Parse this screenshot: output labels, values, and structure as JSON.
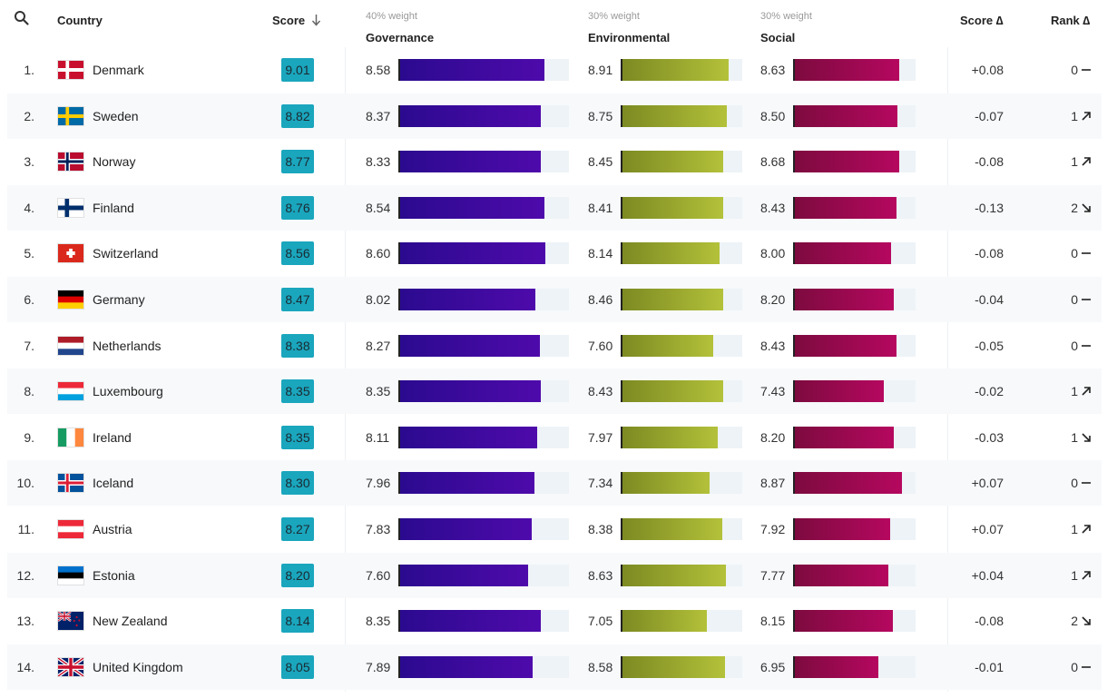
{
  "header": {
    "country": "Country",
    "score": "Score",
    "score_delta": "Score ∆",
    "rank_delta": "Rank ∆",
    "pillars": [
      {
        "name": "Governance",
        "weight": "40% weight"
      },
      {
        "name": "Environmental",
        "weight": "30% weight"
      },
      {
        "name": "Social",
        "weight": "30% weight"
      }
    ]
  },
  "colors": {
    "score_badge": "#1aa6bd",
    "governance": "#4a0aa8",
    "environmental": "#a4b236",
    "social": "#a50a5a"
  },
  "chart_data": {
    "type": "table",
    "bar_range": [
      0,
      10
    ],
    "columns": [
      "Rank",
      "Country",
      "Score",
      "Governance",
      "Environmental",
      "Social",
      "Score ∆",
      "Rank ∆"
    ],
    "rows": [
      {
        "rank": "1.",
        "country": "Denmark",
        "flag": "denmark-flag",
        "score": "9.01",
        "governance": 8.58,
        "environmental": 8.91,
        "social": 8.63,
        "score_delta": "+0.08",
        "rank_delta": "0",
        "trend": "flat"
      },
      {
        "rank": "2.",
        "country": "Sweden",
        "flag": "sweden-flag",
        "score": "8.82",
        "governance": 8.37,
        "environmental": 8.75,
        "social": 8.5,
        "score_delta": "-0.07",
        "rank_delta": "1",
        "trend": "up"
      },
      {
        "rank": "3.",
        "country": "Norway",
        "flag": "norway-flag",
        "score": "8.77",
        "governance": 8.33,
        "environmental": 8.45,
        "social": 8.68,
        "score_delta": "-0.08",
        "rank_delta": "1",
        "trend": "up"
      },
      {
        "rank": "4.",
        "country": "Finland",
        "flag": "finland-flag",
        "score": "8.76",
        "governance": 8.54,
        "environmental": 8.41,
        "social": 8.43,
        "score_delta": "-0.13",
        "rank_delta": "2",
        "trend": "down"
      },
      {
        "rank": "5.",
        "country": "Switzerland",
        "flag": "switzerland-flag",
        "score": "8.56",
        "governance": 8.6,
        "environmental": 8.14,
        "social": 8.0,
        "score_delta": "-0.08",
        "rank_delta": "0",
        "trend": "flat"
      },
      {
        "rank": "6.",
        "country": "Germany",
        "flag": "germany-flag",
        "score": "8.47",
        "governance": 8.02,
        "environmental": 8.46,
        "social": 8.2,
        "score_delta": "-0.04",
        "rank_delta": "0",
        "trend": "flat"
      },
      {
        "rank": "7.",
        "country": "Netherlands",
        "flag": "netherlands-flag",
        "score": "8.38",
        "governance": 8.27,
        "environmental": 7.6,
        "social": 8.43,
        "score_delta": "-0.05",
        "rank_delta": "0",
        "trend": "flat"
      },
      {
        "rank": "8.",
        "country": "Luxembourg",
        "flag": "luxembourg-flag",
        "score": "8.35",
        "governance": 8.35,
        "environmental": 8.43,
        "social": 7.43,
        "score_delta": "-0.02",
        "rank_delta": "1",
        "trend": "up"
      },
      {
        "rank": "9.",
        "country": "Ireland",
        "flag": "ireland-flag",
        "score": "8.35",
        "governance": 8.11,
        "environmental": 7.97,
        "social": 8.2,
        "score_delta": "-0.03",
        "rank_delta": "1",
        "trend": "down"
      },
      {
        "rank": "10.",
        "country": "Iceland",
        "flag": "iceland-flag",
        "score": "8.30",
        "governance": 7.96,
        "environmental": 7.34,
        "social": 8.87,
        "score_delta": "+0.07",
        "rank_delta": "0",
        "trend": "flat"
      },
      {
        "rank": "11.",
        "country": "Austria",
        "flag": "austria-flag",
        "score": "8.27",
        "governance": 7.83,
        "environmental": 8.38,
        "social": 7.92,
        "score_delta": "+0.07",
        "rank_delta": "1",
        "trend": "up"
      },
      {
        "rank": "12.",
        "country": "Estonia",
        "flag": "estonia-flag",
        "score": "8.20",
        "governance": 7.6,
        "environmental": 8.63,
        "social": 7.77,
        "score_delta": "+0.04",
        "rank_delta": "1",
        "trend": "up"
      },
      {
        "rank": "13.",
        "country": "New Zealand",
        "flag": "new-zealand-flag",
        "score": "8.14",
        "governance": 8.35,
        "environmental": 7.05,
        "social": 8.15,
        "score_delta": "-0.08",
        "rank_delta": "2",
        "trend": "down"
      },
      {
        "rank": "14.",
        "country": "United Kingdom",
        "flag": "united-kingdom-flag",
        "score": "8.05",
        "governance": 7.89,
        "environmental": 8.58,
        "social": 6.95,
        "score_delta": "-0.01",
        "rank_delta": "0",
        "trend": "flat"
      }
    ]
  }
}
